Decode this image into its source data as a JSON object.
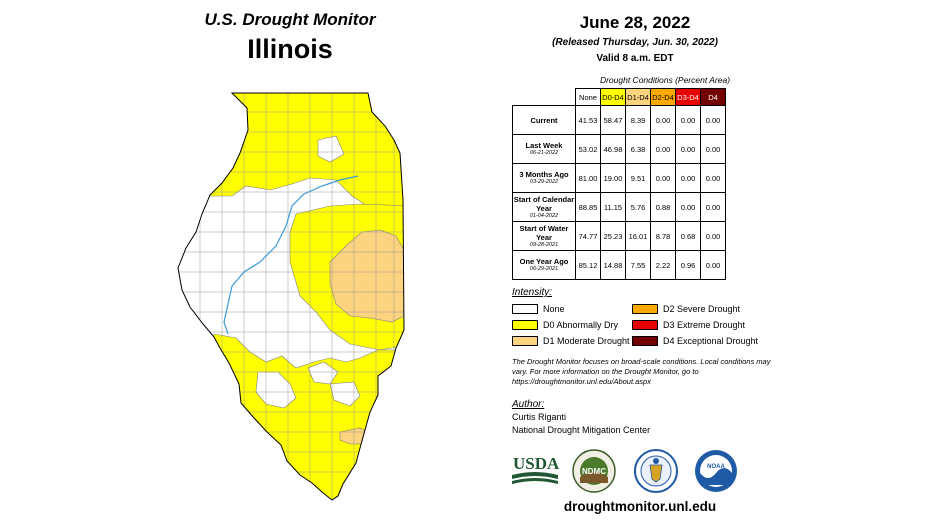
{
  "header": {
    "supertitle": "U.S. Drought Monitor",
    "state": "Illinois",
    "date": "June 28, 2022",
    "released": "(Released Thursday, Jun. 30, 2022)",
    "valid": "Valid 8 a.m. EDT"
  },
  "table": {
    "caption": "Drought Conditions (Percent Area)",
    "columns": [
      "None",
      "D0-D4",
      "D1-D4",
      "D2-D4",
      "D3-D4",
      "D4"
    ],
    "rows": [
      {
        "label": "Current",
        "date": "",
        "values": [
          "41.53",
          "58.47",
          "8.39",
          "0.00",
          "0.00",
          "0.00"
        ]
      },
      {
        "label": "Last Week",
        "date": "06-21-2022",
        "values": [
          "53.02",
          "46.98",
          "6.38",
          "0.00",
          "0.00",
          "0.00"
        ]
      },
      {
        "label": "3 Months Ago",
        "date": "03-29-2022",
        "values": [
          "81.00",
          "19.00",
          "9.51",
          "0.00",
          "0.00",
          "0.00"
        ]
      },
      {
        "label": "Start of Calendar Year",
        "date": "01-04-2022",
        "values": [
          "88.85",
          "11.15",
          "5.76",
          "0.88",
          "0.00",
          "0.00"
        ]
      },
      {
        "label": "Start of Water Year",
        "date": "09-28-2021",
        "values": [
          "74.77",
          "25.23",
          "16.01",
          "8.78",
          "0.68",
          "0.00"
        ]
      },
      {
        "label": "One Year Ago",
        "date": "06-29-2021",
        "values": [
          "85.12",
          "14.88",
          "7.55",
          "2.22",
          "0.96",
          "0.00"
        ]
      }
    ]
  },
  "legend": {
    "title": "Intensity:",
    "items": [
      {
        "label": "None",
        "color": "#ffffff"
      },
      {
        "label": "D0 Abnormally Dry",
        "color": "#ffff00"
      },
      {
        "label": "D1 Moderate Drought",
        "color": "#fcd37f"
      },
      {
        "label": "D2 Severe Drought",
        "color": "#ffaa00"
      },
      {
        "label": "D3 Extreme Drought",
        "color": "#e60000"
      },
      {
        "label": "D4 Exceptional Drought",
        "color": "#730000"
      }
    ]
  },
  "note": "The Drought Monitor focuses on broad-scale conditions. Local conditions may vary. For more information on the Drought Monitor, go to https://droughtmonitor.unl.edu/About.aspx",
  "author": {
    "title": "Author:",
    "name": "Curtis Riganti",
    "org": "National Drought Mitigation Center"
  },
  "logos": {
    "usda": "USDA",
    "ndmc": "NDMC",
    "noaa": "NOAA"
  },
  "footer_url": "droughtmonitor.unl.edu"
}
